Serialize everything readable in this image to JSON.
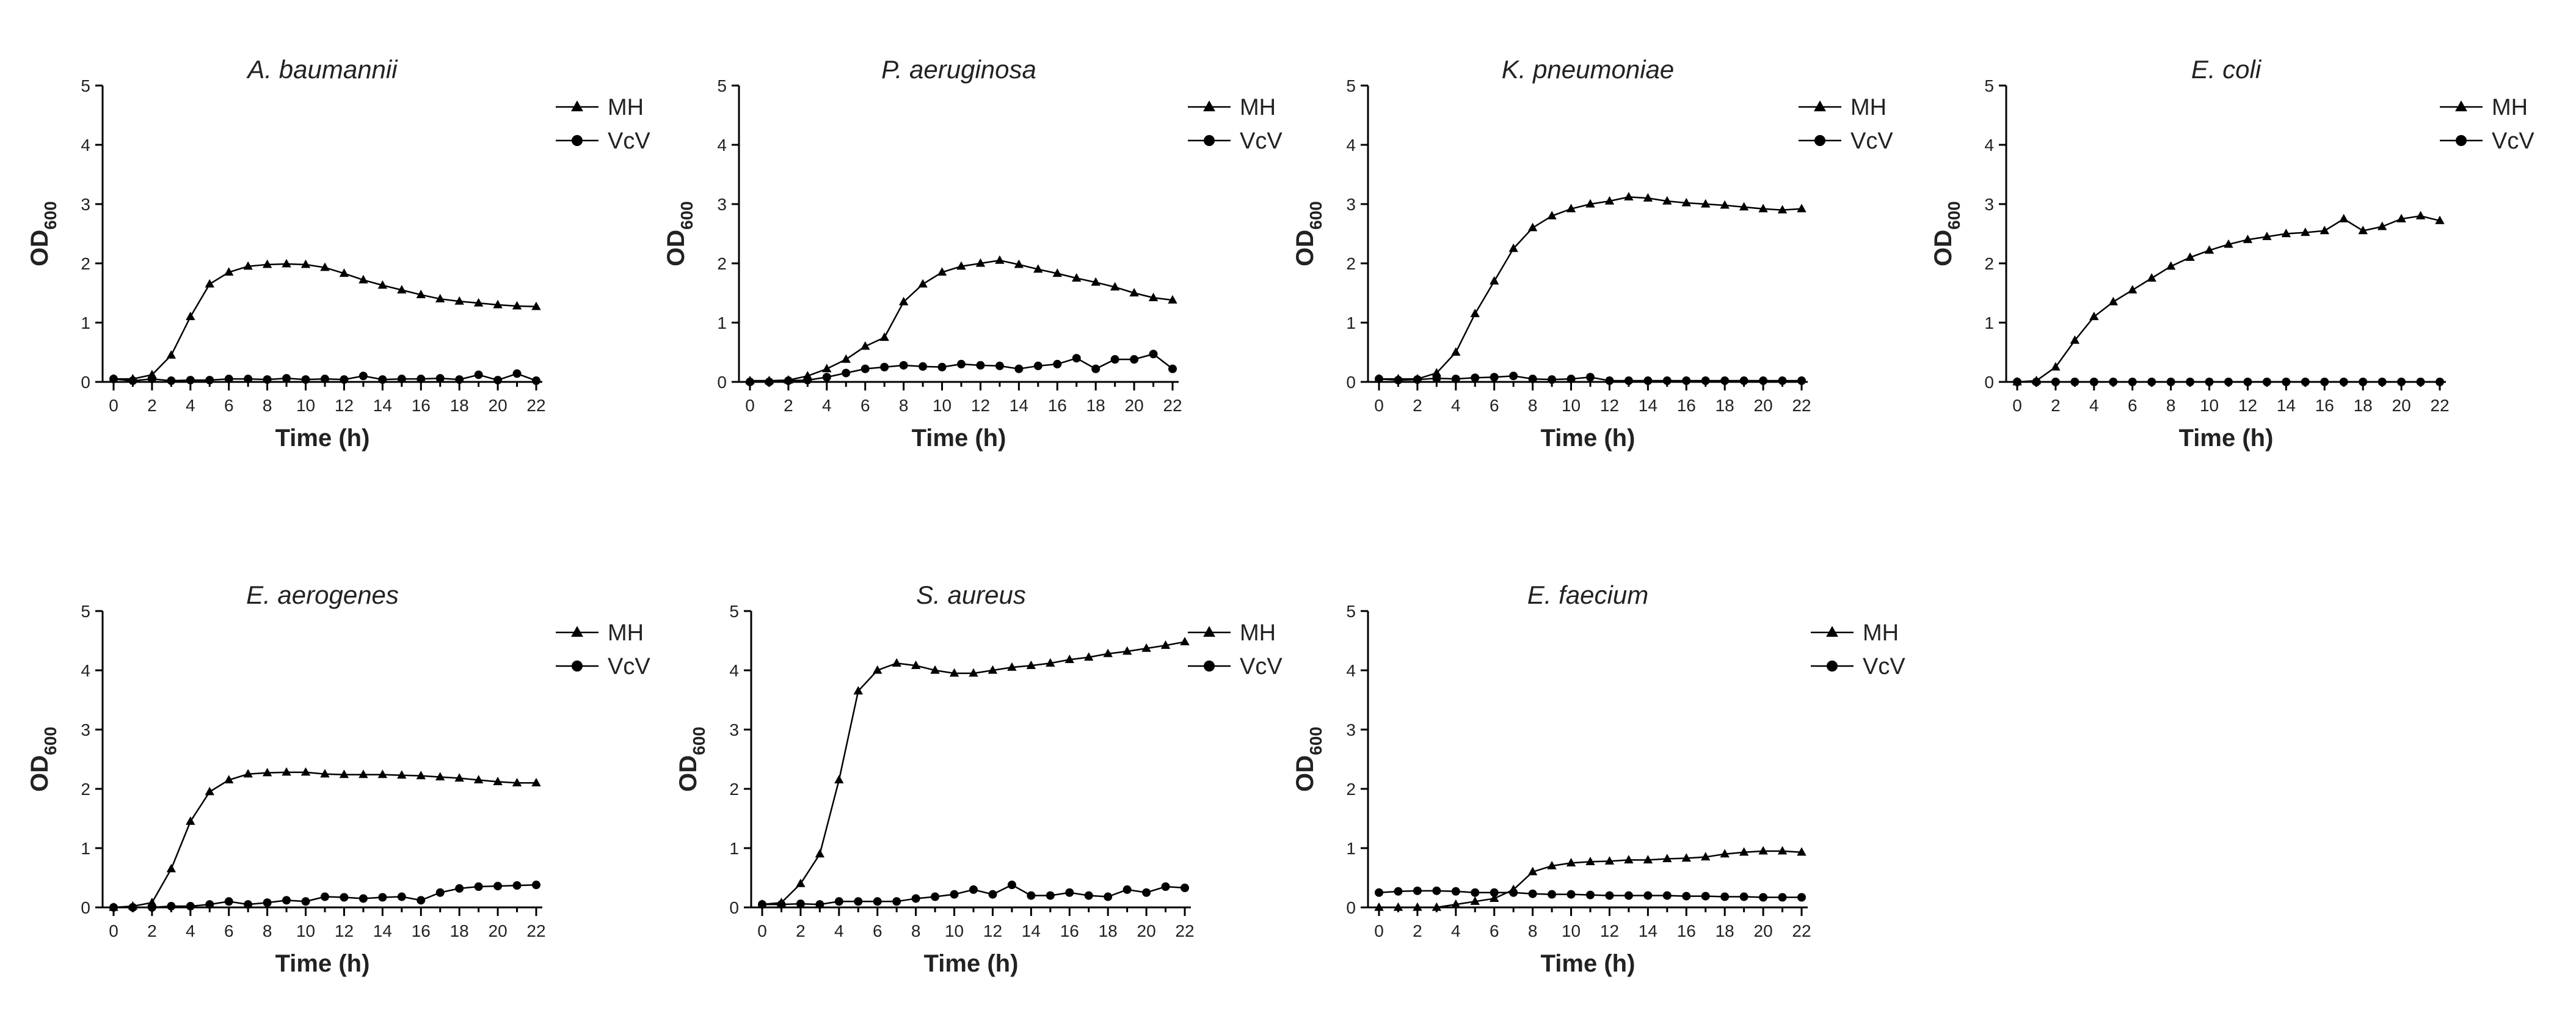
{
  "colors": {
    "line": "#000000",
    "text": "#222222",
    "background": "#ffffff"
  },
  "chart_data": [
    {
      "type": "line",
      "title": "A. baumannii",
      "xlabel": "Time (h)",
      "ylabel": "OD",
      "ylabel_sub": "600",
      "xlim": [
        0,
        22
      ],
      "ylim": [
        0,
        5
      ],
      "xticks": [
        0,
        2,
        4,
        6,
        8,
        10,
        12,
        14,
        16,
        18,
        20,
        22
      ],
      "yticks": [
        0,
        1,
        2,
        3,
        4,
        5
      ],
      "x": [
        0,
        1,
        2,
        3,
        4,
        5,
        6,
        7,
        8,
        9,
        10,
        11,
        12,
        13,
        14,
        15,
        16,
        17,
        18,
        19,
        20,
        21,
        22
      ],
      "series": [
        {
          "name": "MH",
          "marker": "triangle",
          "values": [
            0.05,
            0.05,
            0.12,
            0.45,
            1.1,
            1.65,
            1.85,
            1.95,
            1.98,
            1.99,
            1.98,
            1.93,
            1.83,
            1.72,
            1.63,
            1.55,
            1.47,
            1.4,
            1.36,
            1.33,
            1.3,
            1.28,
            1.27
          ]
        },
        {
          "name": "VcV",
          "marker": "circle",
          "values": [
            0.05,
            0.02,
            0.05,
            0.02,
            0.03,
            0.03,
            0.05,
            0.05,
            0.04,
            0.06,
            0.04,
            0.05,
            0.04,
            0.1,
            0.04,
            0.05,
            0.05,
            0.06,
            0.04,
            0.12,
            0.03,
            0.14,
            0.02
          ]
        }
      ]
    },
    {
      "type": "line",
      "title": "P. aeruginosa",
      "xlabel": "Time (h)",
      "ylabel": "OD",
      "ylabel_sub": "600",
      "xlim": [
        0,
        22
      ],
      "ylim": [
        0,
        5
      ],
      "xticks": [
        0,
        2,
        4,
        6,
        8,
        10,
        12,
        14,
        16,
        18,
        20,
        22
      ],
      "yticks": [
        0,
        1,
        2,
        3,
        4,
        5
      ],
      "x": [
        0,
        1,
        2,
        3,
        4,
        5,
        6,
        7,
        8,
        9,
        10,
        11,
        12,
        13,
        14,
        15,
        16,
        17,
        18,
        19,
        20,
        21,
        22
      ],
      "series": [
        {
          "name": "MH",
          "marker": "triangle",
          "values": [
            0.02,
            0.02,
            0.03,
            0.1,
            0.22,
            0.38,
            0.6,
            0.75,
            1.35,
            1.65,
            1.85,
            1.95,
            2.0,
            2.05,
            1.98,
            1.9,
            1.83,
            1.75,
            1.68,
            1.6,
            1.5,
            1.42,
            1.38
          ]
        },
        {
          "name": "VcV",
          "marker": "circle",
          "values": [
            0.0,
            0.0,
            0.02,
            0.03,
            0.08,
            0.15,
            0.22,
            0.25,
            0.28,
            0.26,
            0.25,
            0.3,
            0.28,
            0.27,
            0.22,
            0.27,
            0.3,
            0.4,
            0.22,
            0.38,
            0.38,
            0.47,
            0.22
          ]
        }
      ]
    },
    {
      "type": "line",
      "title": "K. pneumoniae",
      "xlabel": "Time (h)",
      "ylabel": "OD",
      "ylabel_sub": "600",
      "xlim": [
        0,
        22
      ],
      "ylim": [
        0,
        5
      ],
      "xticks": [
        0,
        2,
        4,
        6,
        8,
        10,
        12,
        14,
        16,
        18,
        20,
        22
      ],
      "yticks": [
        0,
        1,
        2,
        3,
        4,
        5
      ],
      "x": [
        0,
        1,
        2,
        3,
        4,
        5,
        6,
        7,
        8,
        9,
        10,
        11,
        12,
        13,
        14,
        15,
        16,
        17,
        18,
        19,
        20,
        21,
        22
      ],
      "series": [
        {
          "name": "MH",
          "marker": "triangle",
          "values": [
            0.05,
            0.05,
            0.05,
            0.15,
            0.5,
            1.15,
            1.7,
            2.25,
            2.6,
            2.8,
            2.92,
            3.0,
            3.05,
            3.12,
            3.1,
            3.05,
            3.02,
            3.0,
            2.98,
            2.95,
            2.92,
            2.9,
            2.92
          ]
        },
        {
          "name": "VcV",
          "marker": "circle",
          "values": [
            0.05,
            0.03,
            0.04,
            0.06,
            0.05,
            0.07,
            0.08,
            0.1,
            0.05,
            0.04,
            0.05,
            0.08,
            0.02,
            0.02,
            0.02,
            0.02,
            0.02,
            0.02,
            0.02,
            0.02,
            0.02,
            0.02,
            0.02
          ]
        }
      ]
    },
    {
      "type": "line",
      "title": "E. coli",
      "xlabel": "Time (h)",
      "ylabel": "OD",
      "ylabel_sub": "600",
      "xlim": [
        0,
        22
      ],
      "ylim": [
        0,
        5
      ],
      "xticks": [
        0,
        2,
        4,
        6,
        8,
        10,
        12,
        14,
        16,
        18,
        20,
        22
      ],
      "yticks": [
        0,
        1,
        2,
        3,
        4,
        5
      ],
      "x": [
        0,
        1,
        2,
        3,
        4,
        5,
        6,
        7,
        8,
        9,
        10,
        11,
        12,
        13,
        14,
        15,
        16,
        17,
        18,
        19,
        20,
        21,
        22
      ],
      "series": [
        {
          "name": "MH",
          "marker": "triangle",
          "values": [
            0.0,
            0.02,
            0.25,
            0.7,
            1.1,
            1.35,
            1.55,
            1.75,
            1.95,
            2.1,
            2.22,
            2.32,
            2.4,
            2.45,
            2.5,
            2.52,
            2.55,
            2.75,
            2.55,
            2.62,
            2.75,
            2.8,
            2.72
          ]
        },
        {
          "name": "VcV",
          "marker": "circle",
          "values": [
            0.0,
            0.0,
            0.0,
            0.0,
            0.0,
            0.0,
            0.0,
            0.0,
            0.0,
            0.0,
            0.0,
            0.0,
            0.0,
            0.0,
            0.0,
            0.0,
            0.0,
            0.0,
            0.0,
            0.0,
            0.0,
            0.0,
            0.0
          ]
        }
      ]
    },
    {
      "type": "line",
      "title": "E. aerogenes",
      "xlabel": "Time (h)",
      "ylabel": "OD",
      "ylabel_sub": "600",
      "xlim": [
        0,
        22
      ],
      "ylim": [
        0,
        5
      ],
      "xticks": [
        0,
        2,
        4,
        6,
        8,
        10,
        12,
        14,
        16,
        18,
        20,
        22
      ],
      "yticks": [
        0,
        1,
        2,
        3,
        4,
        5
      ],
      "x": [
        0,
        1,
        2,
        3,
        4,
        5,
        6,
        7,
        8,
        9,
        10,
        11,
        12,
        13,
        14,
        15,
        16,
        17,
        18,
        19,
        20,
        21,
        22
      ],
      "series": [
        {
          "name": "MH",
          "marker": "triangle",
          "values": [
            0.0,
            0.02,
            0.08,
            0.65,
            1.45,
            1.95,
            2.15,
            2.25,
            2.27,
            2.28,
            2.28,
            2.25,
            2.24,
            2.24,
            2.24,
            2.23,
            2.22,
            2.2,
            2.18,
            2.15,
            2.12,
            2.1,
            2.1
          ]
        },
        {
          "name": "VcV",
          "marker": "circle",
          "values": [
            0.0,
            0.0,
            0.0,
            0.02,
            0.02,
            0.05,
            0.1,
            0.05,
            0.08,
            0.12,
            0.1,
            0.18,
            0.17,
            0.15,
            0.17,
            0.18,
            0.12,
            0.25,
            0.32,
            0.35,
            0.36,
            0.37,
            0.38
          ]
        }
      ]
    },
    {
      "type": "line",
      "title": "S. aureus",
      "xlabel": "Time (h)",
      "ylabel": "OD",
      "ylabel_sub": "600",
      "xlim": [
        0,
        22
      ],
      "ylim": [
        0,
        5
      ],
      "xticks": [
        0,
        2,
        4,
        6,
        8,
        10,
        12,
        14,
        16,
        18,
        20,
        22
      ],
      "yticks": [
        0,
        1,
        2,
        3,
        4,
        5
      ],
      "x": [
        0,
        1,
        2,
        3,
        4,
        5,
        6,
        7,
        8,
        9,
        10,
        11,
        12,
        13,
        14,
        15,
        16,
        17,
        18,
        19,
        20,
        21,
        22
      ],
      "series": [
        {
          "name": "MH",
          "marker": "triangle",
          "values": [
            0.05,
            0.08,
            0.4,
            0.9,
            2.15,
            3.65,
            4.0,
            4.12,
            4.08,
            4.0,
            3.95,
            3.95,
            4.0,
            4.05,
            4.08,
            4.12,
            4.18,
            4.22,
            4.28,
            4.32,
            4.37,
            4.42,
            4.48
          ]
        },
        {
          "name": "VcV",
          "marker": "circle",
          "values": [
            0.05,
            0.05,
            0.06,
            0.05,
            0.1,
            0.1,
            0.1,
            0.1,
            0.15,
            0.18,
            0.22,
            0.3,
            0.22,
            0.38,
            0.2,
            0.2,
            0.25,
            0.2,
            0.18,
            0.3,
            0.25,
            0.35,
            0.33
          ]
        }
      ]
    },
    {
      "type": "line",
      "title": "E. faecium",
      "xlabel": "Time (h)",
      "ylabel": "OD",
      "ylabel_sub": "600",
      "xlim": [
        0,
        22
      ],
      "ylim": [
        0,
        5
      ],
      "xticks": [
        0,
        2,
        4,
        6,
        8,
        10,
        12,
        14,
        16,
        18,
        20,
        22
      ],
      "yticks": [
        0,
        1,
        2,
        3,
        4,
        5
      ],
      "x": [
        0,
        1,
        2,
        3,
        4,
        5,
        6,
        7,
        8,
        9,
        10,
        11,
        12,
        13,
        14,
        15,
        16,
        17,
        18,
        19,
        20,
        21,
        22
      ],
      "series": [
        {
          "name": "MH",
          "marker": "triangle",
          "values": [
            0.0,
            0.0,
            0.0,
            0.0,
            0.05,
            0.1,
            0.15,
            0.3,
            0.6,
            0.7,
            0.75,
            0.77,
            0.78,
            0.8,
            0.8,
            0.82,
            0.83,
            0.85,
            0.9,
            0.93,
            0.95,
            0.95,
            0.93
          ]
        },
        {
          "name": "VcV",
          "marker": "circle",
          "values": [
            0.25,
            0.27,
            0.28,
            0.28,
            0.27,
            0.25,
            0.25,
            0.25,
            0.23,
            0.22,
            0.22,
            0.21,
            0.2,
            0.2,
            0.2,
            0.2,
            0.19,
            0.19,
            0.18,
            0.18,
            0.17,
            0.17,
            0.17
          ]
        }
      ]
    }
  ]
}
